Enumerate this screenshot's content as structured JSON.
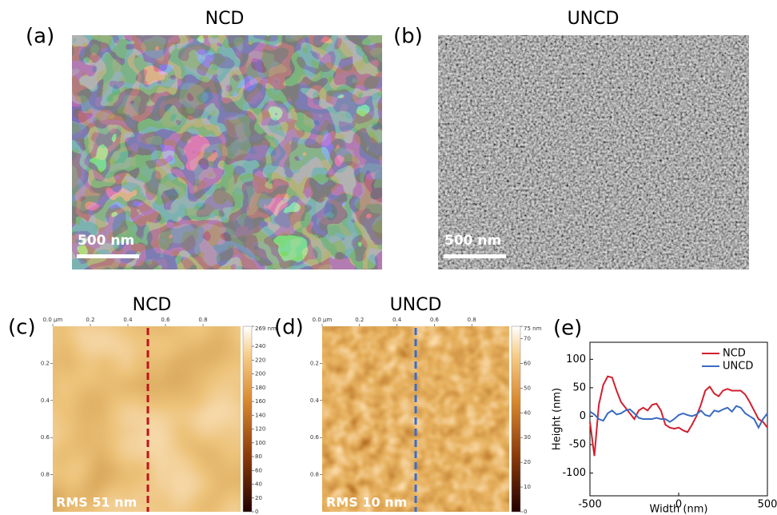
{
  "panels": [
    {
      "label": "(a)",
      "title": "NCD",
      "scale_bar": "500 nm"
    },
    {
      "label": "(b)",
      "title": "UNCD",
      "scale_bar": "500 nm"
    },
    {
      "label": "(c)",
      "title": "NCD",
      "rms": "RMS 51 nm",
      "xlim": [
        0,
        1
      ],
      "zlim": [
        0,
        269
      ],
      "xticks": [
        {
          "value": 0,
          "label": "0.0 µm"
        },
        0.2,
        0.4,
        0.6,
        0.8
      ],
      "yticks": [
        0.2,
        0.4,
        0.6,
        0.8
      ],
      "cbar_ticks": [
        {
          "value": 269,
          "label": "269 nm"
        },
        240,
        220,
        200,
        180,
        160,
        140,
        120,
        100,
        80,
        60,
        40,
        20,
        0
      ]
    },
    {
      "label": "(d)",
      "title": "UNCD",
      "rms": "RMS 10 nm",
      "xlim": [
        0,
        1
      ],
      "zlim": [
        0,
        75
      ],
      "xticks": [
        {
          "value": 0,
          "label": "0.0 µm"
        },
        0.2,
        0.4,
        0.6,
        0.8
      ],
      "yticks": [
        0.2,
        0.4,
        0.6,
        0.8
      ],
      "cbar_ticks": [
        {
          "value": 75,
          "label": "75 nm"
        },
        70,
        60,
        50,
        40,
        30,
        20,
        10,
        0
      ]
    }
  ],
  "chart_data": {
    "type": "line",
    "panel_label": "(e)",
    "x_label": "Width (nm)",
    "y_label": "Height (nm)",
    "x": [
      -500,
      -475,
      -450,
      -425,
      -400,
      -375,
      -350,
      -325,
      -300,
      -275,
      -250,
      -225,
      -200,
      -175,
      -150,
      -125,
      -100,
      -75,
      -50,
      -25,
      0,
      25,
      50,
      75,
      100,
      125,
      150,
      175,
      200,
      225,
      250,
      275,
      300,
      325,
      350,
      375,
      400,
      425,
      450,
      475,
      500
    ],
    "series": [
      {
        "name": "NCD",
        "color": "#d0202f",
        "values": [
          -10,
          -70,
          20,
          55,
          70,
          68,
          45,
          25,
          15,
          5,
          -5,
          10,
          15,
          10,
          20,
          22,
          10,
          -15,
          -20,
          -22,
          -20,
          -25,
          -28,
          -15,
          0,
          20,
          45,
          52,
          40,
          35,
          45,
          48,
          45,
          45,
          45,
          38,
          25,
          10,
          -5,
          -10,
          -20
        ]
      },
      {
        "name": "UNCD",
        "color": "#3a6bbf",
        "values": [
          8,
          3,
          -5,
          -8,
          5,
          10,
          3,
          5,
          10,
          12,
          5,
          -3,
          -5,
          -5,
          -5,
          -3,
          -5,
          -5,
          -10,
          -5,
          2,
          5,
          2,
          0,
          3,
          10,
          2,
          0,
          10,
          8,
          12,
          15,
          8,
          18,
          15,
          5,
          0,
          -5,
          -20,
          -5,
          5
        ]
      }
    ],
    "xlim": [
      -500,
      500
    ],
    "ylim": [
      -140,
      130
    ],
    "xticks": [
      -500,
      0,
      500
    ],
    "yticks": [
      -100,
      -50,
      0,
      50,
      100
    ],
    "legend": "upper right"
  }
}
